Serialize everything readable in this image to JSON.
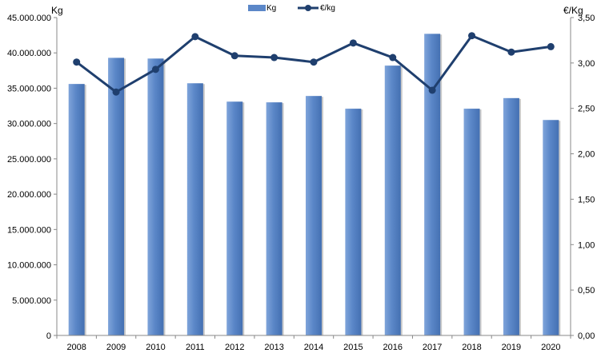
{
  "chart_data": {
    "type": "bar",
    "categories": [
      "2008",
      "2009",
      "2010",
      "2011",
      "2012",
      "2013",
      "2014",
      "2015",
      "2016",
      "2017",
      "2018",
      "2019",
      "2020"
    ],
    "series": [
      {
        "name": "Kg",
        "type": "bar",
        "axis": "left",
        "color": "#5B87C8",
        "values": [
          35600000,
          39300000,
          39200000,
          35700000,
          33100000,
          33000000,
          33900000,
          32100000,
          38200000,
          42700000,
          32100000,
          33600000,
          30500000
        ]
      },
      {
        "name": "€/kg",
        "type": "line",
        "axis": "right",
        "color": "#1F3F6E",
        "values": [
          3.01,
          2.68,
          2.93,
          3.29,
          3.08,
          3.06,
          3.01,
          3.22,
          3.06,
          2.7,
          3.3,
          3.12,
          3.18
        ]
      }
    ],
    "ylabel": "Kg",
    "y2label": "€/Kg",
    "ylim": [
      0,
      45000000
    ],
    "y2lim": [
      0,
      3.5
    ],
    "yticks": [
      "0",
      "5.000.000",
      "10.000.000",
      "15.000.000",
      "20.000.000",
      "25.000.000",
      "30.000.000",
      "35.000.000",
      "40.000.000",
      "45.000.000"
    ],
    "y2ticks": [
      "0,00",
      "0,50",
      "1,00",
      "1,50",
      "2,00",
      "2,50",
      "3,00",
      "3,50"
    ],
    "legend": "top-center",
    "grid": false
  }
}
